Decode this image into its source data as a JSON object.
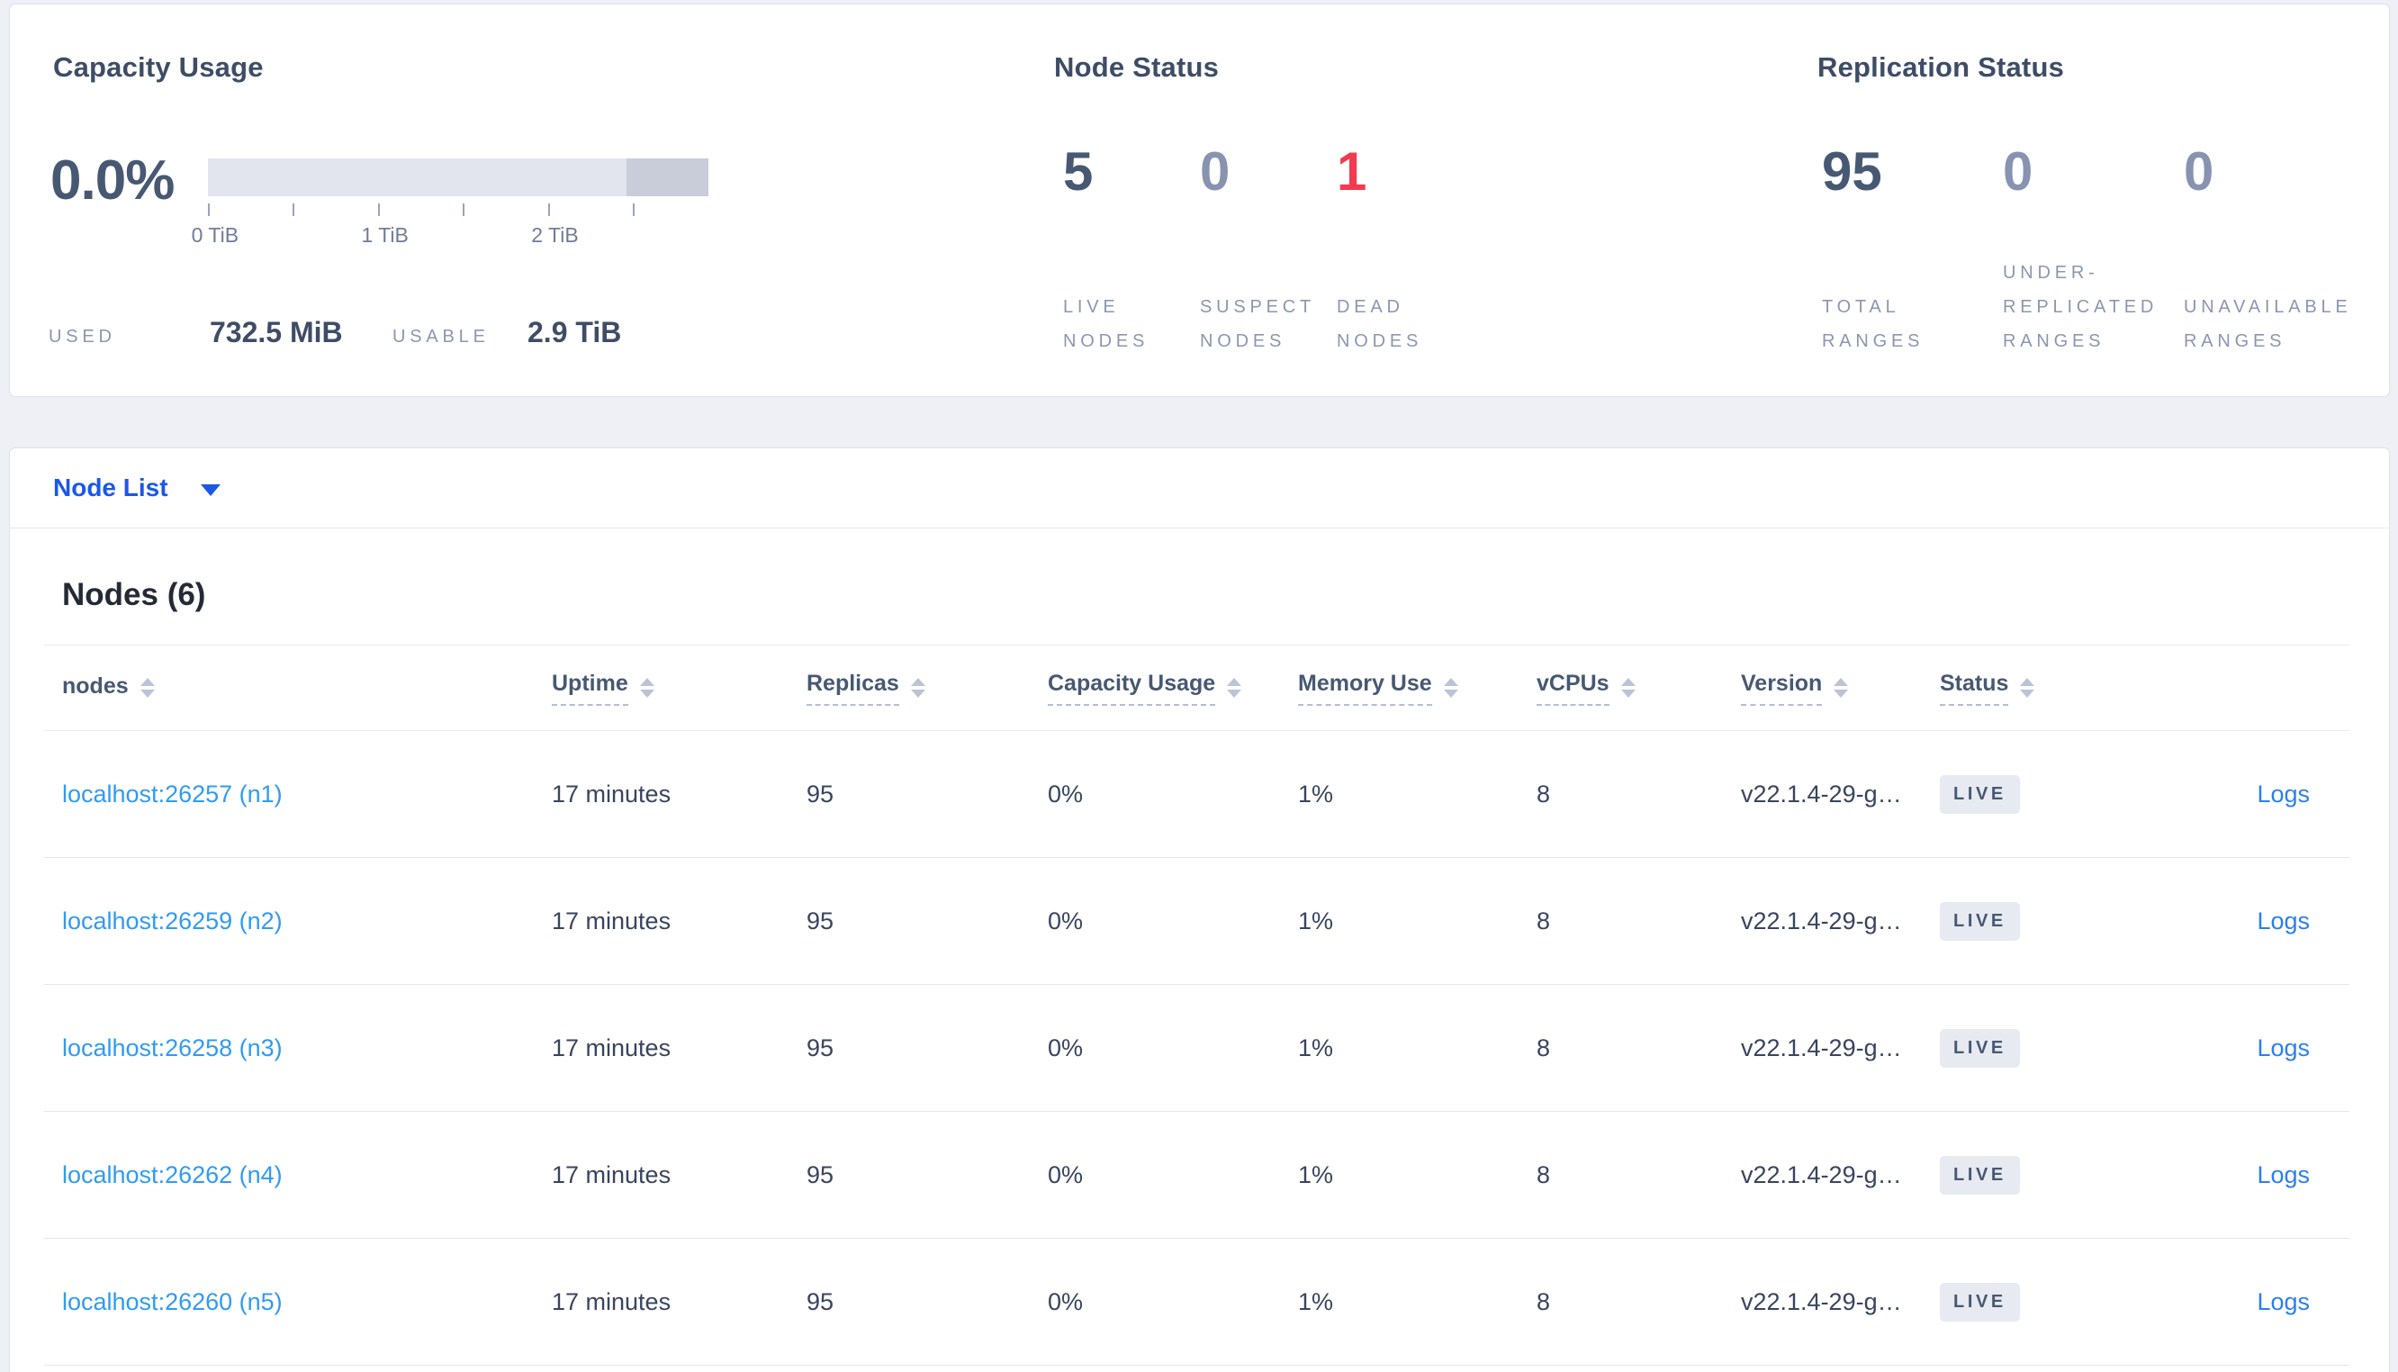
{
  "summary": {
    "capacity": {
      "title": "Capacity Usage",
      "percent": "0.0%",
      "used_label": "USED",
      "used_value": "732.5 MiB",
      "usable_label": "USABLE",
      "usable_value": "2.9 TiB",
      "axis": {
        "tick_count": 6,
        "labels": [
          {
            "text": "0 TiB",
            "index": 0
          },
          {
            "text": "1 TiB",
            "index": 2
          },
          {
            "text": "2 TiB",
            "index": 4
          }
        ]
      }
    },
    "node_status": {
      "title": "Node Status",
      "stats": [
        {
          "value": "5",
          "label": "LIVE NODES",
          "tone": "dark"
        },
        {
          "value": "0",
          "label": "SUSPECT NODES",
          "tone": "muted"
        },
        {
          "value": "1",
          "label": "DEAD NODES",
          "tone": "danger"
        }
      ]
    },
    "replication_status": {
      "title": "Replication Status",
      "stats": [
        {
          "value": "95",
          "label": "TOTAL RANGES",
          "tone": "dark"
        },
        {
          "value": "0",
          "label": "UNDER-REPLICATED RANGES",
          "tone": "muted"
        },
        {
          "value": "0",
          "label": "UNAVAILABLE RANGES",
          "tone": "muted"
        }
      ]
    }
  },
  "view_selector": {
    "label": "Node List"
  },
  "table": {
    "heading": "Nodes (6)",
    "columns": [
      {
        "label": "nodes",
        "dashed": false
      },
      {
        "label": "Uptime",
        "dashed": true
      },
      {
        "label": "Replicas",
        "dashed": true
      },
      {
        "label": "Capacity Usage",
        "dashed": true
      },
      {
        "label": "Memory Use",
        "dashed": true
      },
      {
        "label": "vCPUs",
        "dashed": true
      },
      {
        "label": "Version",
        "dashed": true
      },
      {
        "label": "Status",
        "dashed": true
      }
    ],
    "rows": [
      {
        "node": "localhost:26257 (n1)",
        "uptime": "17 minutes",
        "replicas": "95",
        "capacity": "0%",
        "memory": "1%",
        "vcpus": "8",
        "version": "v22.1.4-29-g…",
        "status": "LIVE",
        "logs": "Logs"
      },
      {
        "node": "localhost:26259 (n2)",
        "uptime": "17 minutes",
        "replicas": "95",
        "capacity": "0%",
        "memory": "1%",
        "vcpus": "8",
        "version": "v22.1.4-29-g…",
        "status": "LIVE",
        "logs": "Logs"
      },
      {
        "node": "localhost:26258 (n3)",
        "uptime": "17 minutes",
        "replicas": "95",
        "capacity": "0%",
        "memory": "1%",
        "vcpus": "8",
        "version": "v22.1.4-29-g…",
        "status": "LIVE",
        "logs": "Logs"
      },
      {
        "node": "localhost:26262 (n4)",
        "uptime": "17 minutes",
        "replicas": "95",
        "capacity": "0%",
        "memory": "1%",
        "vcpus": "8",
        "version": "v22.1.4-29-g…",
        "status": "LIVE",
        "logs": "Logs"
      },
      {
        "node": "localhost:26260 (n5)",
        "uptime": "17 minutes",
        "replicas": "95",
        "capacity": "0%",
        "memory": "1%",
        "vcpus": "8",
        "version": "v22.1.4-29-g…",
        "status": "LIVE",
        "logs": "Logs"
      }
    ]
  },
  "colors": {
    "accent_blue": "#1b57e8",
    "node_link_blue": "#2f9bf3",
    "logs_link_blue": "#2b7ff0",
    "danger_red": "#f23b50",
    "stat_dark": "#475872",
    "stat_muted": "#8793b0",
    "badge_bg": "#e7eaf1"
  }
}
